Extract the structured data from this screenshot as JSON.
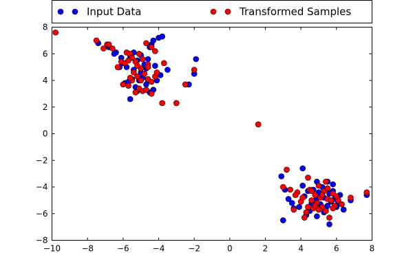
{
  "chart_data": {
    "type": "scatter",
    "xlim": [
      -10,
      8
    ],
    "ylim": [
      -8,
      8
    ],
    "x_ticks": [
      -10,
      -8,
      -6,
      -4,
      -2,
      0,
      2,
      4,
      6,
      8
    ],
    "y_ticks": [
      -8,
      -6,
      -4,
      -2,
      0,
      2,
      4,
      6,
      8
    ],
    "x_tick_labels": [
      "−10",
      "−8",
      "−6",
      "−4",
      "−2",
      "0",
      "2",
      "4",
      "6",
      "8"
    ],
    "y_tick_labels": [
      "−8",
      "−6",
      "−4",
      "−2",
      "0",
      "2",
      "4",
      "6",
      "8"
    ],
    "grid": false,
    "legend_placement": "top",
    "series": [
      {
        "name": "Input Data",
        "color": "#0000ff",
        "points": [
          [
            -7.4,
            6.8
          ],
          [
            -6.8,
            6.5
          ],
          [
            -6.4,
            6.1
          ],
          [
            -6.2,
            5.0
          ],
          [
            -6.0,
            5.3
          ],
          [
            -5.8,
            5.0
          ],
          [
            -5.6,
            5.8
          ],
          [
            -5.4,
            4.8
          ],
          [
            -5.2,
            5.5
          ],
          [
            -5.0,
            5.9
          ],
          [
            -4.8,
            5.2
          ],
          [
            -4.6,
            5.6
          ],
          [
            -4.5,
            6.5
          ],
          [
            -4.4,
            6.7
          ],
          [
            -4.3,
            7.0
          ],
          [
            -4.0,
            7.2
          ],
          [
            -3.8,
            7.3
          ],
          [
            -5.9,
            3.8
          ],
          [
            -5.7,
            3.9
          ],
          [
            -5.5,
            4.1
          ],
          [
            -5.3,
            3.5
          ],
          [
            -5.1,
            4.0
          ],
          [
            -4.9,
            4.2
          ],
          [
            -4.7,
            3.7
          ],
          [
            -4.5,
            3.1
          ],
          [
            -4.3,
            3.3
          ],
          [
            -4.1,
            4.0
          ],
          [
            -3.9,
            4.4
          ],
          [
            -3.5,
            4.8
          ],
          [
            -5.6,
            2.6
          ],
          [
            -2.3,
            3.7
          ],
          [
            -2.0,
            4.5
          ],
          [
            -1.9,
            5.6
          ],
          [
            -6.1,
            5.7
          ],
          [
            -5.0,
            4.6
          ],
          [
            -4.7,
            4.9
          ],
          [
            -4.2,
            5.1
          ],
          [
            -5.4,
            6.1
          ],
          [
            -6.5,
            6.0
          ],
          [
            -5.2,
            3.2
          ],
          [
            -4.6,
            4.0
          ],
          [
            2.9,
            -3.2
          ],
          [
            3.1,
            -4.2
          ],
          [
            3.3,
            -4.9
          ],
          [
            3.5,
            -5.2
          ],
          [
            3.7,
            -4.6
          ],
          [
            3.9,
            -5.5
          ],
          [
            4.1,
            -2.6
          ],
          [
            4.1,
            -3.9
          ],
          [
            4.2,
            -4.7
          ],
          [
            4.3,
            -6.1
          ],
          [
            4.5,
            -5.8
          ],
          [
            4.7,
            -4.2
          ],
          [
            4.8,
            -5.0
          ],
          [
            4.9,
            -3.6
          ],
          [
            5.0,
            -4.4
          ],
          [
            5.1,
            -5.3
          ],
          [
            5.2,
            -4.0
          ],
          [
            5.3,
            -4.8
          ],
          [
            5.4,
            -5.6
          ],
          [
            5.5,
            -3.6
          ],
          [
            5.6,
            -4.5
          ],
          [
            5.7,
            -5.1
          ],
          [
            5.8,
            -3.8
          ],
          [
            5.9,
            -4.9
          ],
          [
            6.0,
            -5.5
          ],
          [
            6.2,
            -4.6
          ],
          [
            6.4,
            -5.7
          ],
          [
            6.8,
            -5.0
          ],
          [
            7.7,
            -4.6
          ],
          [
            3.0,
            -6.5
          ],
          [
            5.6,
            -6.8
          ],
          [
            4.9,
            -6.2
          ],
          [
            5.3,
            -5.9
          ],
          [
            4.6,
            -5.2
          ],
          [
            5.0,
            -4.8
          ],
          [
            5.5,
            -5.4
          ],
          [
            4.4,
            -4.3
          ],
          [
            5.8,
            -4.3
          ],
          [
            6.1,
            -5.2
          ],
          [
            3.6,
            -5.6
          ]
        ]
      },
      {
        "name": "Transformed Samples",
        "color": "#ff0000",
        "points": [
          [
            -9.8,
            7.6
          ],
          [
            -7.5,
            7.0
          ],
          [
            -7.1,
            6.4
          ],
          [
            -6.9,
            6.7
          ],
          [
            -6.6,
            6.4
          ],
          [
            -6.3,
            5.0
          ],
          [
            -6.1,
            5.4
          ],
          [
            -5.8,
            6.1
          ],
          [
            -5.6,
            6.0
          ],
          [
            -5.5,
            5.7
          ],
          [
            -5.3,
            5.4
          ],
          [
            -5.1,
            6.0
          ],
          [
            -4.9,
            5.6
          ],
          [
            -4.7,
            6.8
          ],
          [
            -4.6,
            5.2
          ],
          [
            -4.4,
            6.5
          ],
          [
            -4.2,
            6.2
          ],
          [
            -5.9,
            5.3
          ],
          [
            -5.7,
            5.5
          ],
          [
            -5.4,
            4.6
          ],
          [
            -5.2,
            4.3
          ],
          [
            -5.0,
            4.0
          ],
          [
            -4.8,
            4.5
          ],
          [
            -4.6,
            4.1
          ],
          [
            -4.4,
            3.9
          ],
          [
            -4.2,
            4.3
          ],
          [
            -4.1,
            4.6
          ],
          [
            -3.7,
            5.3
          ],
          [
            -6.0,
            3.7
          ],
          [
            -5.7,
            3.6
          ],
          [
            -5.5,
            4.0
          ],
          [
            -5.3,
            3.1
          ],
          [
            -5.1,
            3.4
          ],
          [
            -4.9,
            3.2
          ],
          [
            -4.7,
            3.3
          ],
          [
            -4.4,
            3.0
          ],
          [
            -3.8,
            2.3
          ],
          [
            -3.0,
            2.3
          ],
          [
            -2.5,
            3.7
          ],
          [
            -2.0,
            4.8
          ],
          [
            -5.6,
            4.2
          ],
          [
            -5.0,
            4.9
          ],
          [
            -4.6,
            5.0
          ],
          [
            -6.8,
            6.7
          ],
          [
            -5.2,
            5.1
          ],
          [
            1.6,
            0.7
          ],
          [
            3.0,
            -4.0
          ],
          [
            3.2,
            -2.7
          ],
          [
            3.4,
            -4.2
          ],
          [
            3.6,
            -5.7
          ],
          [
            3.8,
            -4.4
          ],
          [
            4.0,
            -5.1
          ],
          [
            4.1,
            -4.8
          ],
          [
            4.2,
            -6.3
          ],
          [
            4.4,
            -3.3
          ],
          [
            4.5,
            -4.2
          ],
          [
            4.6,
            -5.0
          ],
          [
            4.7,
            -5.6
          ],
          [
            4.8,
            -4.6
          ],
          [
            4.9,
            -5.2
          ],
          [
            5.0,
            -3.9
          ],
          [
            5.1,
            -4.8
          ],
          [
            5.2,
            -5.5
          ],
          [
            5.3,
            -4.3
          ],
          [
            5.4,
            -3.6
          ],
          [
            5.5,
            -4.9
          ],
          [
            5.6,
            -6.3
          ],
          [
            5.7,
            -5.0
          ],
          [
            5.8,
            -4.5
          ],
          [
            5.9,
            -5.4
          ],
          [
            6.1,
            -5.0
          ],
          [
            6.3,
            -5.3
          ],
          [
            6.8,
            -4.8
          ],
          [
            7.7,
            -4.4
          ],
          [
            4.3,
            -5.9
          ],
          [
            5.0,
            -5.7
          ],
          [
            5.5,
            -4.1
          ],
          [
            4.8,
            -5.4
          ],
          [
            5.2,
            -4.6
          ],
          [
            3.7,
            -4.6
          ],
          [
            4.6,
            -4.3
          ],
          [
            6.0,
            -4.7
          ],
          [
            5.4,
            -5.8
          ],
          [
            4.4,
            -5.5
          ],
          [
            5.8,
            -5.6
          ]
        ]
      }
    ]
  }
}
